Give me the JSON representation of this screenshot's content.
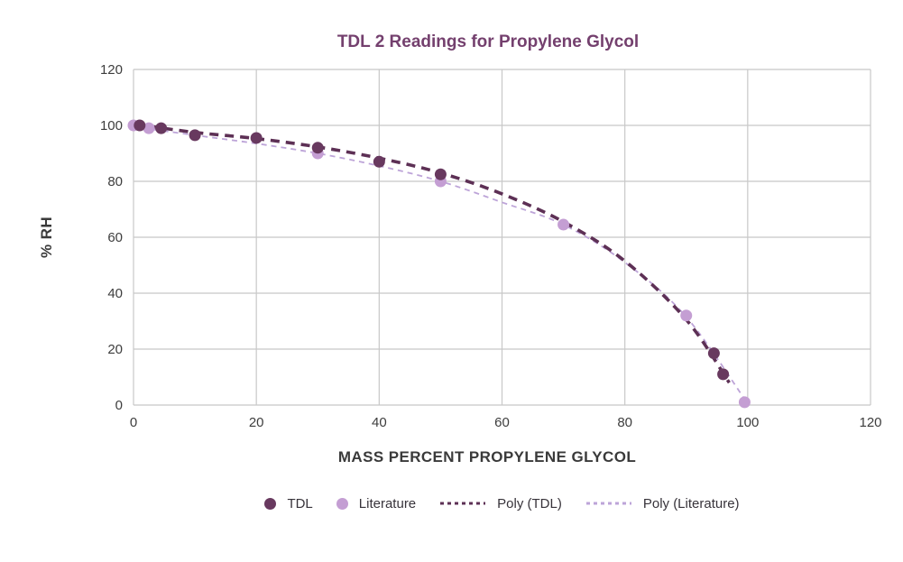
{
  "chart_data": {
    "type": "scatter",
    "title": "TDL 2 Readings for Propylene Glycol",
    "xlabel": "MASS PERCENT PROPYLENE GLYCOL",
    "ylabel": "% RH",
    "xlim": [
      0,
      120
    ],
    "ylim": [
      0,
      120
    ],
    "x_ticks": [
      0,
      20,
      40,
      60,
      80,
      100,
      120
    ],
    "y_ticks": [
      0,
      20,
      40,
      60,
      80,
      100,
      120
    ],
    "grid": true,
    "legend_position": "bottom",
    "colors": {
      "title": "#74406e",
      "grid": "#c8c8c8",
      "tick_text": "#3d3d3d",
      "axis_title": "#3a3a3a",
      "legend_text": "#37333a",
      "background": "#ffffff"
    },
    "series": [
      {
        "name": "TDL",
        "kind": "scatter",
        "color": "#68395f",
        "points": [
          [
            1,
            100
          ],
          [
            4.5,
            99
          ],
          [
            10,
            96.5
          ],
          [
            20,
            95.5
          ],
          [
            30,
            92
          ],
          [
            40,
            87
          ],
          [
            50,
            82.5
          ],
          [
            94.5,
            18.5
          ],
          [
            96,
            11
          ]
        ]
      },
      {
        "name": "Literature",
        "kind": "scatter",
        "color": "#c49ed3",
        "points": [
          [
            0,
            100
          ],
          [
            2.5,
            99
          ],
          [
            30,
            90
          ],
          [
            50,
            80
          ],
          [
            70,
            64.5
          ],
          [
            90,
            32
          ],
          [
            99.5,
            1
          ]
        ]
      },
      {
        "name": "Poly (TDL)",
        "kind": "dashed-line",
        "color": "#5d3055",
        "points": [
          [
            0,
            100.5
          ],
          [
            10,
            97.5
          ],
          [
            20,
            95.3
          ],
          [
            30,
            92.3
          ],
          [
            40,
            88.3
          ],
          [
            50,
            83
          ],
          [
            60,
            75.5
          ],
          [
            70,
            65.5
          ],
          [
            80,
            51.5
          ],
          [
            90,
            30.5
          ],
          [
            97,
            8
          ]
        ]
      },
      {
        "name": "Poly (Literature)",
        "kind": "dashed-line",
        "color": "#bda4d8",
        "points": [
          [
            0,
            99.5
          ],
          [
            10,
            96.5
          ],
          [
            20,
            93.5
          ],
          [
            30,
            90
          ],
          [
            40,
            85.5
          ],
          [
            50,
            80
          ],
          [
            60,
            72.5
          ],
          [
            70,
            64.5
          ],
          [
            80,
            51
          ],
          [
            90,
            31.5
          ],
          [
            100,
            0.5
          ]
        ]
      }
    ]
  }
}
